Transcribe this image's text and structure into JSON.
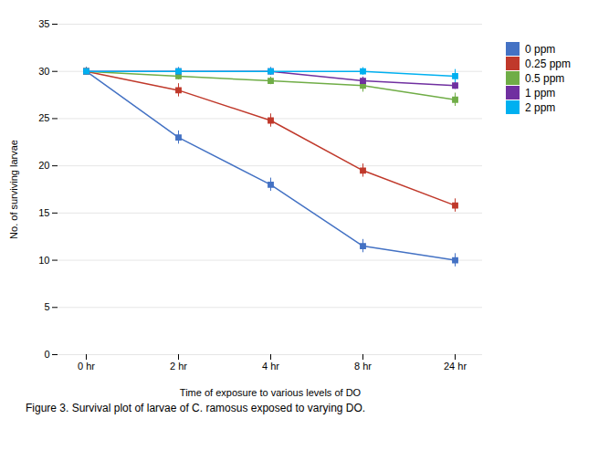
{
  "chart_data": {
    "type": "line",
    "xlabel": "Time of exposure to various levels of DO",
    "ylabel": "No. of surviving larvae",
    "caption": "Figure 3. Survival plot of larvae of C. ramosus exposed to varying DO.",
    "categories": [
      "0 hr",
      "2 hr",
      "4 hr",
      "8 hr",
      "24 hr"
    ],
    "series": [
      {
        "name": "0 ppm",
        "color": "#4472C4",
        "values": [
          30,
          23,
          18,
          11.5,
          10
        ],
        "yerr": [
          0.4,
          0.7,
          0.7,
          0.7,
          0.7
        ]
      },
      {
        "name": "0.25 ppm",
        "color": "#C0392B",
        "values": [
          30,
          28,
          24.8,
          19.5,
          15.8
        ],
        "yerr": [
          0.4,
          0.7,
          0.7,
          0.7,
          0.7
        ]
      },
      {
        "name": "0.5 ppm",
        "color": "#70AD47",
        "values": [
          30,
          29.5,
          29,
          28.5,
          27
        ],
        "yerr": [
          0.4,
          0.4,
          0.4,
          0.7,
          0.7
        ]
      },
      {
        "name": "1 ppm",
        "color": "#7030A0",
        "values": [
          30,
          30,
          30,
          29,
          28.5
        ],
        "yerr": [
          0.4,
          0.4,
          0.4,
          0.4,
          0.4
        ]
      },
      {
        "name": "2 ppm",
        "color": "#00B0F0",
        "values": [
          30,
          30,
          30,
          30,
          29.5
        ],
        "yerr": [
          0.4,
          0.4,
          0.4,
          0.4,
          0.7
        ]
      }
    ],
    "ylim": [
      0,
      35
    ],
    "yticks": [
      0,
      5,
      10,
      15,
      20,
      25,
      30,
      35
    ],
    "grid": true,
    "legend": "right",
    "marker": "square"
  }
}
